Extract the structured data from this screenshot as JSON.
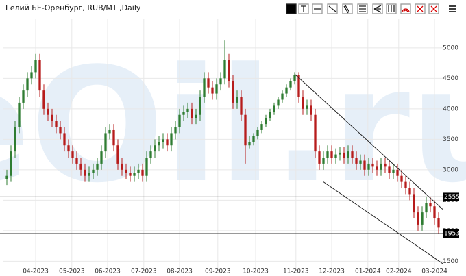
{
  "chart_data": {
    "type": "candlestick",
    "title": "Гелий БЕ-Оренбург, RUB/MT ,Daily",
    "watermark": "eOil.ru",
    "up_color": "#2f7d32",
    "down_color": "#b71c1c",
    "x": [
      0,
      1,
      2,
      3,
      4,
      5,
      6,
      7,
      8,
      9,
      10,
      11,
      12,
      13,
      14,
      15,
      16,
      17,
      18,
      19,
      20,
      21,
      22,
      23,
      24,
      25,
      26,
      27,
      28,
      29,
      30,
      31,
      32,
      33,
      34,
      35,
      36,
      37,
      38,
      39,
      40,
      41,
      42,
      43,
      44,
      45,
      46,
      47,
      48,
      49,
      50,
      51,
      52,
      53,
      54,
      55,
      56,
      57,
      58,
      59,
      60,
      61,
      62,
      63,
      64,
      65,
      66,
      67,
      68,
      69,
      70,
      71,
      72,
      73,
      74,
      75,
      76,
      77,
      78,
      79,
      80,
      81,
      82,
      83,
      84,
      85,
      86,
      87,
      88,
      89,
      90,
      91,
      92,
      93,
      94,
      95,
      96,
      97,
      98,
      99,
      100,
      101,
      102,
      103,
      104,
      105
    ],
    "open": [
      2850,
      2900,
      3300,
      3700,
      4100,
      4300,
      4500,
      4600,
      4800,
      4300,
      4000,
      3900,
      3800,
      3700,
      3600,
      3400,
      3300,
      3200,
      3100,
      3000,
      2900,
      2950,
      3000,
      3100,
      3300,
      3600,
      3650,
      3400,
      3100,
      3000,
      2950,
      2900,
      2950,
      3000,
      2900,
      3200,
      3300,
      3400,
      3450,
      3500,
      3400,
      3600,
      3700,
      3900,
      3950,
      4000,
      3850,
      3900,
      4200,
      4500,
      4350,
      4250,
      4400,
      4500,
      4800,
      4450,
      4100,
      4200,
      3900,
      3400,
      3450,
      3550,
      3650,
      3750,
      3850,
      3950,
      4050,
      4150,
      4250,
      4350,
      4450,
      4550,
      4200,
      4000,
      4050,
      3900,
      3300,
      3100,
      3200,
      3300,
      3200,
      3250,
      3280,
      3200,
      3300,
      3200,
      3100,
      3150,
      3000,
      3100,
      3050,
      3000,
      3100,
      3050,
      2950,
      3000,
      2900,
      2800,
      2700,
      2600,
      2300,
      2100,
      2300,
      2450,
      2400,
      2200
    ],
    "high": [
      3000,
      3400,
      3800,
      4200,
      4400,
      4600,
      4700,
      4900,
      4900,
      4400,
      4100,
      4000,
      3900,
      3800,
      3700,
      3500,
      3400,
      3300,
      3200,
      3100,
      3050,
      3100,
      3200,
      3400,
      3700,
      3750,
      3750,
      3500,
      3200,
      3100,
      3050,
      3050,
      3100,
      3100,
      3300,
      3400,
      3500,
      3550,
      3600,
      3600,
      3700,
      3800,
      4000,
      4050,
      4100,
      4100,
      4000,
      4300,
      4600,
      4600,
      4450,
      4500,
      4600,
      5120,
      4900,
      4550,
      4300,
      4300,
      4000,
      3550,
      3600,
      3700,
      3800,
      3900,
      4000,
      4100,
      4200,
      4300,
      4400,
      4500,
      4600,
      4600,
      4300,
      4150,
      4150,
      4000,
      3400,
      3300,
      3400,
      3400,
      3350,
      3380,
      3380,
      3400,
      3400,
      3300,
      3250,
      3250,
      3200,
      3200,
      3150,
      3200,
      3200,
      3150,
      3100,
      3100,
      3000,
      2900,
      2800,
      2700,
      2400,
      2400,
      2550,
      2550,
      2500,
      2300
    ],
    "low": [
      2750,
      2800,
      3200,
      3600,
      4000,
      4200,
      4400,
      4500,
      4200,
      3900,
      3800,
      3700,
      3600,
      3500,
      3300,
      3200,
      3100,
      3000,
      2900,
      2800,
      2800,
      2850,
      2900,
      3000,
      3200,
      3500,
      3300,
      3000,
      2900,
      2850,
      2800,
      2800,
      2850,
      2800,
      2800,
      3100,
      3200,
      3300,
      3350,
      3300,
      3300,
      3500,
      3600,
      3800,
      3850,
      3750,
      3750,
      3800,
      4100,
      4250,
      4150,
      4150,
      4300,
      4400,
      4350,
      4000,
      4000,
      3800,
      3100,
      3350,
      3400,
      3500,
      3600,
      3700,
      3800,
      3900,
      4000,
      4100,
      4200,
      4300,
      4400,
      4100,
      3900,
      3900,
      3800,
      3200,
      3000,
      3000,
      3100,
      3100,
      3100,
      3150,
      3100,
      3100,
      3100,
      3000,
      3000,
      2900,
      2900,
      2950,
      2900,
      2900,
      2950,
      2850,
      2850,
      2800,
      2700,
      2600,
      2500,
      2200,
      2000,
      2000,
      2200,
      2300,
      2100,
      1950
    ],
    "close": [
      2900,
      3300,
      3700,
      4100,
      4300,
      4500,
      4600,
      4800,
      4300,
      4000,
      3900,
      3800,
      3700,
      3600,
      3400,
      3300,
      3200,
      3100,
      3000,
      2900,
      2950,
      3000,
      3100,
      3300,
      3600,
      3650,
      3400,
      3100,
      3000,
      2950,
      2900,
      2950,
      3000,
      2900,
      3200,
      3300,
      3400,
      3450,
      3500,
      3400,
      3600,
      3700,
      3900,
      3950,
      4000,
      3850,
      3900,
      4200,
      4500,
      4350,
      4250,
      4400,
      4500,
      4800,
      4450,
      4100,
      4200,
      3900,
      3400,
      3450,
      3550,
      3650,
      3750,
      3850,
      3950,
      4050,
      4150,
      4250,
      4350,
      4450,
      4550,
      4200,
      4000,
      4050,
      3900,
      3300,
      3100,
      3200,
      3300,
      3200,
      3250,
      3280,
      3200,
      3300,
      3200,
      3100,
      3150,
      3000,
      3100,
      3050,
      3000,
      3100,
      3050,
      2950,
      3000,
      2900,
      2800,
      2700,
      2600,
      2300,
      2100,
      2300,
      2450,
      2400,
      2200,
      2050
    ],
    "xlim": [
      -1,
      106
    ],
    "xticks": [
      {
        "value": 7,
        "label": "04-2023"
      },
      {
        "value": 15.8,
        "label": "05-2023"
      },
      {
        "value": 24.5,
        "label": "06-2023"
      },
      {
        "value": 33.3,
        "label": "07-2023"
      },
      {
        "value": 42,
        "label": "08-2023"
      },
      {
        "value": 51.3,
        "label": "09-2023"
      },
      {
        "value": 60.5,
        "label": "10-2023"
      },
      {
        "value": 70.3,
        "label": "11-2023"
      },
      {
        "value": 79,
        "label": "12-2023"
      },
      {
        "value": 87.8,
        "label": "01-2024"
      },
      {
        "value": 95.3,
        "label": "02-2024"
      },
      {
        "value": 104,
        "label": "03-2024"
      }
    ],
    "ylim": [
      1380,
      5470
    ],
    "yticks": [
      1500,
      2000,
      2500,
      3000,
      3500,
      4000,
      4500,
      5000
    ],
    "grid": true,
    "hlines": [
      {
        "value": 2555
      },
      {
        "value": 1953
      }
    ],
    "trendlines": [
      {
        "x": [
          70,
          106
        ],
        "y": [
          4570,
          2350
        ]
      },
      {
        "x": [
          77,
          106
        ],
        "y": [
          2800,
          1460
        ]
      }
    ]
  }
}
